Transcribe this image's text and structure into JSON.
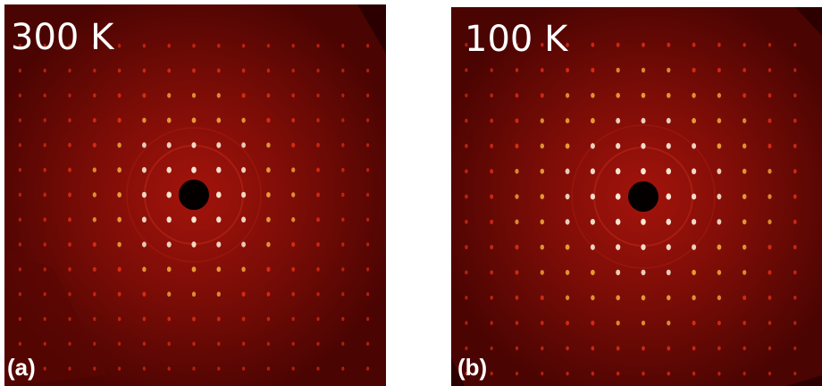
{
  "panels": [
    {
      "temperature": "300 K",
      "label": "(a)"
    },
    {
      "temperature": "100 K",
      "label": "(b)"
    }
  ]
}
